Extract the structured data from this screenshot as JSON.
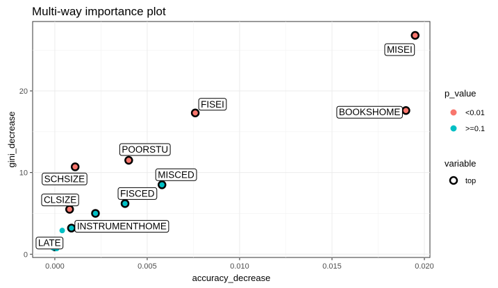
{
  "chart_data": {
    "type": "scatter",
    "title": "Multi-way importance plot",
    "xlabel": "accuracy_decrease",
    "ylabel": "gini_decrease",
    "xlim": [
      -0.0012,
      0.0203
    ],
    "ylim": [
      -0.4,
      28.5
    ],
    "x_ticks": [
      0.0,
      0.005,
      0.01,
      0.015,
      0.02
    ],
    "x_tick_labels": [
      "0.000",
      "0.005",
      "0.010",
      "0.015",
      "0.020"
    ],
    "y_ticks": [
      0,
      10,
      20
    ],
    "y_tick_labels": [
      "0",
      "10",
      "20"
    ],
    "grid": true,
    "legend_placement": "right",
    "legends": {
      "p_value": {
        "title": "p_value",
        "items": [
          {
            "label": "<0.01",
            "color": "#F8766D"
          },
          {
            "label": ">=0.1",
            "color": "#00BFC4"
          }
        ]
      },
      "variable": {
        "title": "variable",
        "items": [
          {
            "label": "top",
            "shape": "open-circle"
          }
        ]
      }
    },
    "points": [
      {
        "label": "MISEI",
        "x": 0.0195,
        "y": 26.8,
        "p_value": "<0.01",
        "top": true
      },
      {
        "label": "BOOKSHOME",
        "x": 0.019,
        "y": 17.6,
        "p_value": "<0.01",
        "top": true
      },
      {
        "label": "FISEI",
        "x": 0.0076,
        "y": 17.3,
        "p_value": "<0.01",
        "top": true
      },
      {
        "label": "POORSTU",
        "x": 0.004,
        "y": 11.5,
        "p_value": "<0.01",
        "top": true
      },
      {
        "label": "SCHSIZE",
        "x": 0.0011,
        "y": 10.7,
        "p_value": "<0.01",
        "top": true
      },
      {
        "label": "MISCED",
        "x": 0.0058,
        "y": 8.5,
        "p_value": ">=0.1",
        "top": true
      },
      {
        "label": "FISCED",
        "x": 0.0038,
        "y": 6.2,
        "p_value": ">=0.1",
        "top": true
      },
      {
        "label": "CLSIZE",
        "x": 0.0008,
        "y": 5.5,
        "p_value": "<0.01",
        "top": true
      },
      {
        "label": "",
        "x": 0.0022,
        "y": 5.0,
        "p_value": ">=0.1",
        "top": true
      },
      {
        "label": "INSTRUMENTHOME",
        "x": 0.0009,
        "y": 3.2,
        "p_value": ">=0.1",
        "top": true
      },
      {
        "label": "LATE",
        "x": 0.0,
        "y": 0.9,
        "p_value": ">=0.1",
        "top": true
      },
      {
        "label": "",
        "x": 0.0004,
        "y": 2.9,
        "p_value": ">=0.1",
        "top": false
      },
      {
        "label": "",
        "x": -0.0001,
        "y": 0.8,
        "p_value": ">=0.1",
        "top": false
      },
      {
        "label": "",
        "x": 0.0001,
        "y": 0.7,
        "p_value": ">=0.1",
        "top": false
      }
    ]
  }
}
